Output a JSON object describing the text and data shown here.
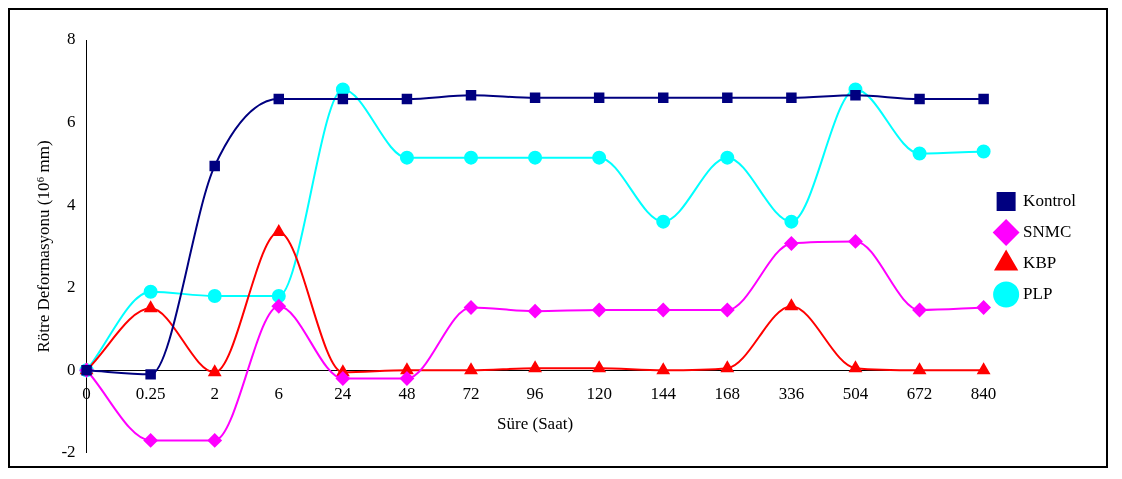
{
  "chart_data": {
    "type": "line",
    "xlabel": "Süre (Saat)",
    "ylabel": "Rötre Deformasyonu (10⁶ mm)",
    "categories": [
      "0",
      "0.25",
      "2",
      "6",
      "24",
      "48",
      "72",
      "96",
      "120",
      "144",
      "168",
      "336",
      "504",
      "672",
      "840"
    ],
    "ylim": [
      -2,
      8
    ],
    "yticks": [
      -2,
      0,
      2,
      4,
      6,
      8
    ],
    "grid": false,
    "legend": "right",
    "line_style": "solid",
    "series": [
      {
        "name": "Kontrol",
        "color": "#000080",
        "marker": "square",
        "values": [
          0,
          -0.1,
          4.95,
          6.57,
          6.57,
          6.57,
          6.66,
          6.6,
          6.6,
          6.6,
          6.6,
          6.6,
          6.66,
          6.57,
          6.57
        ]
      },
      {
        "name": "SNMC",
        "color": "#ff00ff",
        "marker": "diamond",
        "values": [
          0,
          -1.7,
          -1.7,
          1.55,
          -0.2,
          -0.2,
          1.52,
          1.43,
          1.46,
          1.46,
          1.46,
          3.07,
          3.12,
          1.46,
          1.52
        ]
      },
      {
        "name": "KBP",
        "color": "#ff0000",
        "marker": "triangle",
        "values": [
          0,
          1.5,
          -0.05,
          3.35,
          -0.05,
          0,
          0,
          0.05,
          0.05,
          0,
          0.05,
          1.55,
          0.05,
          0,
          0
        ]
      },
      {
        "name": "PLP",
        "color": "#00ffff",
        "marker": "circle",
        "values": [
          0,
          1.9,
          1.8,
          1.8,
          6.8,
          5.15,
          5.15,
          5.15,
          5.15,
          3.6,
          5.15,
          3.6,
          6.8,
          5.25,
          5.3
        ]
      }
    ]
  }
}
